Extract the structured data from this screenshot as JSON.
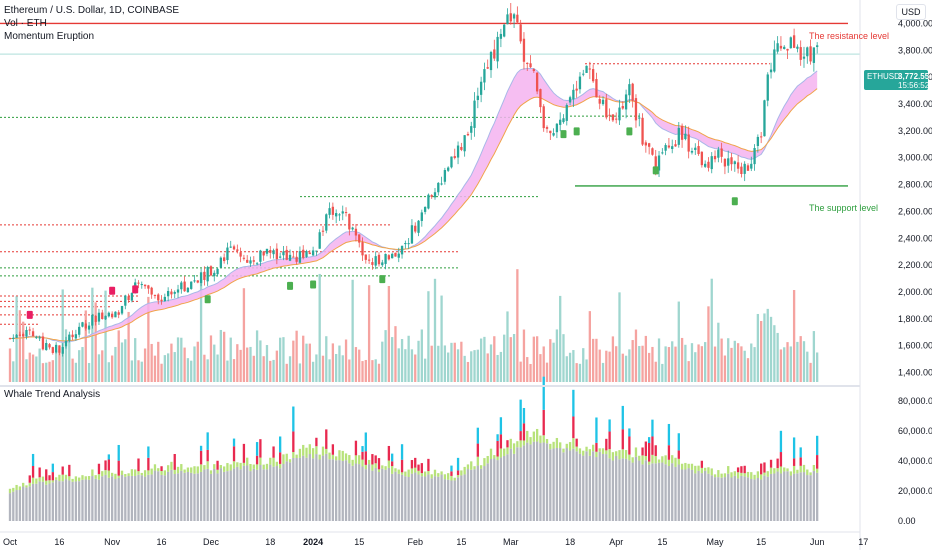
{
  "header": {
    "symbol_line": "Ethereum / U.S. Dollar, 1D, COINBASE",
    "volume_label": "Vol · ETH",
    "indicator_label": "Momentum Eruption",
    "currency_button": "USD",
    "lower_panel_title": "Whale Trend Analysis"
  },
  "price_tag": {
    "ticker": "ETHUSD",
    "price": "3,772.55",
    "countdown": "15:56:52"
  },
  "annotations": {
    "resistance": "The resistance level",
    "support": "The support level"
  },
  "colors": {
    "up": "#26a69a",
    "down": "#ef5350",
    "vol_up": "#9fd6cf",
    "vol_down": "#f5a3a0",
    "resistance": "#e53935",
    "support": "#2e9e3e",
    "ema_band": "#f5b3f0",
    "whale_gray": "#b2b5be",
    "whale_green": "#b7e27a",
    "whale_red": "#e8294f",
    "whale_cyan": "#1ec3e6"
  },
  "chart_data": [
    {
      "type": "candlestick",
      "title": "Ethereum / U.S. Dollar, 1D, COINBASE",
      "y_axis_ticks": [
        "4,000.00",
        "3,800.00",
        "3,600.00",
        "3,400.00",
        "3,200.00",
        "3,000.00",
        "2,800.00",
        "2,600.00",
        "2,400.00",
        "2,200.00",
        "2,000.00",
        "1,800.00",
        "1,600.00",
        "1,400.00"
      ],
      "y_tick_values": [
        4000,
        3800,
        3600,
        3400,
        3200,
        3000,
        2800,
        2600,
        2400,
        2200,
        2000,
        1800,
        1600,
        1400
      ],
      "ylim": [
        1330,
        4100
      ],
      "x_axis_ticks": [
        "Oct",
        "16",
        "Nov",
        "16",
        "Dec",
        "18",
        "2024",
        "15",
        "Feb",
        "15",
        "Mar",
        "18",
        "Apr",
        "15",
        "May",
        "15",
        "Jun",
        "17"
      ],
      "x_tick_days": [
        0,
        15,
        31,
        46,
        61,
        79,
        92,
        106,
        123,
        137,
        152,
        170,
        184,
        198,
        214,
        228,
        245,
        259
      ],
      "horizontal_levels": [
        {
          "value": 4000,
          "label": "The resistance level"
        },
        {
          "value": 2790,
          "label": "The support level"
        }
      ],
      "price_keypoints": [
        [
          0,
          1655
        ],
        [
          6,
          1720
        ],
        [
          10,
          1600
        ],
        [
          15,
          1570
        ],
        [
          20,
          1700
        ],
        [
          25,
          1810
        ],
        [
          31,
          1815
        ],
        [
          34,
          1890
        ],
        [
          38,
          2070
        ],
        [
          45,
          1960
        ],
        [
          50,
          2030
        ],
        [
          55,
          2060
        ],
        [
          62,
          2180
        ],
        [
          66,
          2300
        ],
        [
          70,
          2260
        ],
        [
          75,
          2250
        ],
        [
          80,
          2300
        ],
        [
          85,
          2230
        ],
        [
          90,
          2280
        ],
        [
          93,
          2330
        ],
        [
          97,
          2620
        ],
        [
          100,
          2600
        ],
        [
          104,
          2480
        ],
        [
          108,
          2210
        ],
        [
          113,
          2250
        ],
        [
          118,
          2310
        ],
        [
          122,
          2450
        ],
        [
          126,
          2650
        ],
        [
          130,
          2800
        ],
        [
          135,
          2980
        ],
        [
          140,
          3300
        ],
        [
          144,
          3600
        ],
        [
          149,
          3950
        ],
        [
          153,
          4050
        ],
        [
          156,
          3800
        ],
        [
          160,
          3500
        ],
        [
          163,
          3150
        ],
        [
          167,
          3300
        ],
        [
          171,
          3500
        ],
        [
          176,
          3640
        ],
        [
          180,
          3400
        ],
        [
          184,
          3300
        ],
        [
          188,
          3520
        ],
        [
          190,
          3350
        ],
        [
          193,
          3050
        ],
        [
          196,
          2950
        ],
        [
          200,
          3100
        ],
        [
          203,
          3180
        ],
        [
          207,
          3060
        ],
        [
          211,
          2900
        ],
        [
          215,
          3000
        ],
        [
          220,
          3000
        ],
        [
          222,
          2920
        ],
        [
          224,
          2950
        ],
        [
          228,
          3140
        ],
        [
          230,
          3700
        ],
        [
          234,
          3810
        ],
        [
          238,
          3860
        ],
        [
          241,
          3790
        ],
        [
          245,
          3772
        ]
      ],
      "volume_range_eth": [
        0,
        900000
      ]
    },
    {
      "type": "bar",
      "title": "Whale Trend Analysis",
      "y_axis_ticks": [
        "80,000.00",
        "60,000.00",
        "40,000.00",
        "20,000.00",
        "0.00"
      ],
      "y_tick_values": [
        80000,
        60000,
        40000,
        20000,
        0
      ],
      "ylim": [
        -6000,
        86000
      ],
      "base_keypoints": [
        [
          0,
          20000
        ],
        [
          10,
          26000
        ],
        [
          25,
          29000
        ],
        [
          40,
          32000
        ],
        [
          60,
          34000
        ],
        [
          80,
          37000
        ],
        [
          92,
          44000
        ],
        [
          100,
          43000
        ],
        [
          108,
          37000
        ],
        [
          120,
          32000
        ],
        [
          135,
          29000
        ],
        [
          145,
          40000
        ],
        [
          153,
          48000
        ],
        [
          160,
          52000
        ],
        [
          170,
          48000
        ],
        [
          180,
          44000
        ],
        [
          195,
          40000
        ],
        [
          210,
          33000
        ],
        [
          225,
          28000
        ],
        [
          232,
          32000
        ],
        [
          240,
          33000
        ],
        [
          245,
          33000
        ]
      ]
    }
  ]
}
